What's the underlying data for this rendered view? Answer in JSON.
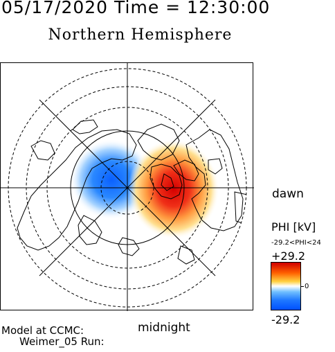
{
  "header": {
    "datetime": "05/17/2020 Time = 12:30:00",
    "title": "Northern Hemisphere"
  },
  "map": {
    "projection": "polar stereographic, north pole centered",
    "orientation": {
      "dawn_label": "dawn",
      "midnight_label": "midnight"
    },
    "latitude_circles": "dashed",
    "meridian_lines": "solid",
    "potential_cells": [
      {
        "sign": "negative",
        "color": "#1e78ff",
        "side": "dusk"
      },
      {
        "sign": "positive",
        "color": "#e00000",
        "side": "dawn"
      }
    ]
  },
  "colorbar": {
    "title": "PHI [kV]",
    "range_label": "-29.2<PHI<24",
    "max_label": "+29.2",
    "zero_label": "0",
    "min_label": "-29.2",
    "colors": {
      "max": "#d00000",
      "mid": "#ffffff",
      "min": "#0050ff"
    }
  },
  "footer": {
    "model_line1": "Model at CCMC:",
    "model_line2": "Weimer_05 Run:"
  }
}
